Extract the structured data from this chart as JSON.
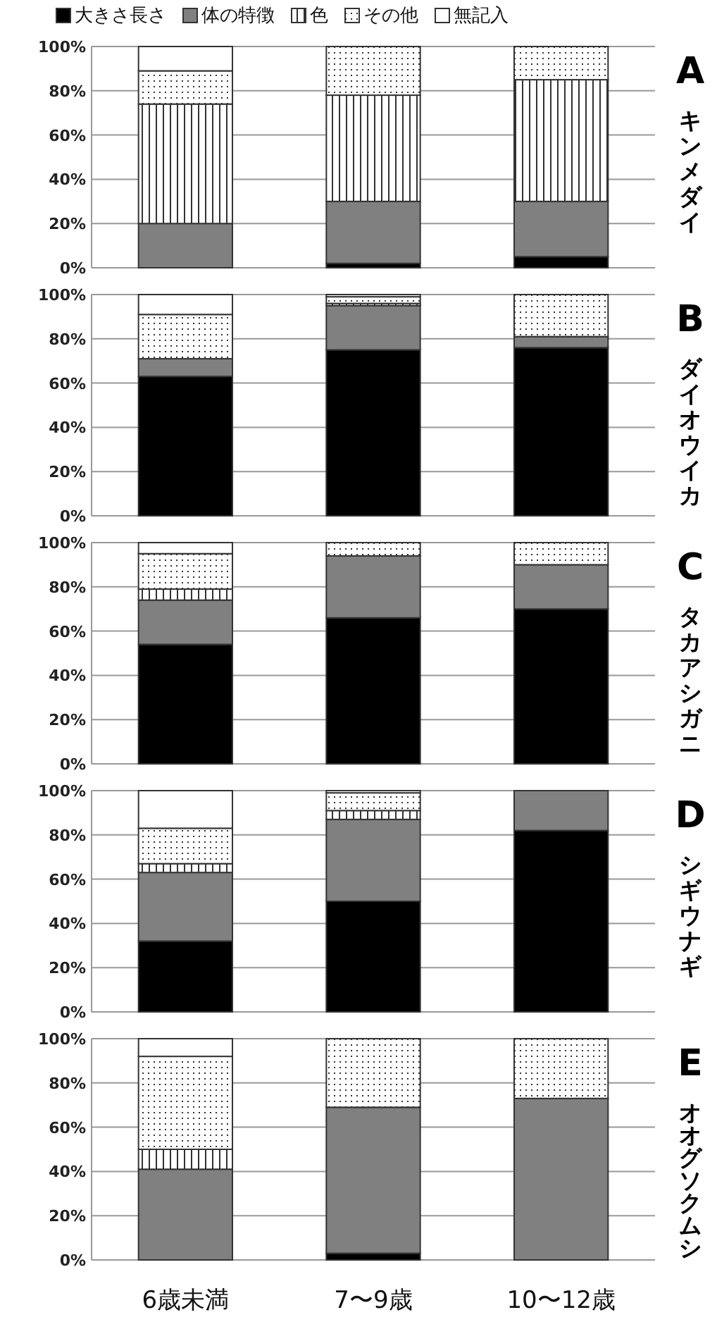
{
  "chart_data": [
    {
      "type": "bar",
      "stacked": true,
      "annotations": [
        "A",
        "キンメダイ"
      ],
      "categories": [
        null,
        null,
        null
      ],
      "ylim": [
        0,
        100
      ],
      "yticks": [
        {
          "value": 0,
          "label": "0%"
        },
        {
          "value": 20,
          "label": "20%"
        },
        {
          "value": 40,
          "label": "40%"
        },
        {
          "value": 60,
          "label": "60%"
        },
        {
          "value": 80,
          "label": "80%"
        },
        {
          "value": 100,
          "label": "100%"
        }
      ],
      "grid": "y",
      "legend": "top",
      "tick_labels": "y",
      "series": [
        {
          "name": "大きさ長さ",
          "color": "#000000",
          "values": [
            0,
            2,
            5
          ]
        },
        {
          "name": "体の特徴",
          "color": "#808080",
          "values": [
            20,
            28,
            25
          ]
        },
        {
          "name": "色",
          "color": "#333333",
          "values": [
            54,
            48,
            55
          ]
        },
        {
          "name": "その他",
          "color": "#333333",
          "values": [
            15,
            22,
            15
          ]
        },
        {
          "name": "無記入",
          "color": "#ffffff",
          "values": [
            11,
            0,
            0
          ]
        }
      ]
    },
    {
      "type": "bar",
      "stacked": true,
      "annotations": [
        "B",
        "ダイオウイカ"
      ],
      "categories": [
        null,
        null,
        null
      ],
      "ylim": [
        0,
        100
      ],
      "yticks": [
        {
          "value": 0,
          "label": "0%"
        },
        {
          "value": 20,
          "label": "20%"
        },
        {
          "value": 40,
          "label": "40%"
        },
        {
          "value": 60,
          "label": "60%"
        },
        {
          "value": 80,
          "label": "80%"
        },
        {
          "value": 100,
          "label": "100%"
        }
      ],
      "grid": "y",
      "tick_labels": "y",
      "series": [
        {
          "color": "#000000",
          "values": [
            63,
            75,
            76
          ]
        },
        {
          "color": "#808080",
          "values": [
            8,
            20,
            5
          ]
        },
        {
          "color": "#333333",
          "values": [
            0,
            1,
            0
          ]
        },
        {
          "color": "#333333",
          "values": [
            20,
            3,
            19
          ]
        },
        {
          "color": "#ffffff",
          "values": [
            9,
            1,
            0
          ]
        }
      ]
    },
    {
      "type": "bar",
      "stacked": true,
      "annotations": [
        "C",
        "タカアシガニ"
      ],
      "categories": [
        null,
        null,
        null
      ],
      "ylim": [
        0,
        100
      ],
      "yticks": [
        {
          "value": 0,
          "label": "0%"
        },
        {
          "value": 20,
          "label": "20%"
        },
        {
          "value": 40,
          "label": "40%"
        },
        {
          "value": 60,
          "label": "60%"
        },
        {
          "value": 80,
          "label": "80%"
        },
        {
          "value": 100,
          "label": "100%"
        }
      ],
      "grid": "y",
      "tick_labels": "y",
      "series": [
        {
          "color": "#000000",
          "values": [
            54,
            66,
            70
          ]
        },
        {
          "color": "#808080",
          "values": [
            20,
            28,
            20
          ]
        },
        {
          "color": "#333333",
          "values": [
            5,
            0,
            0
          ]
        },
        {
          "color": "#333333",
          "values": [
            16,
            6,
            10
          ]
        },
        {
          "color": "#ffffff",
          "values": [
            5,
            0,
            0
          ]
        }
      ]
    },
    {
      "type": "bar",
      "stacked": true,
      "annotations": [
        "D",
        "シギウナギ"
      ],
      "categories": [
        null,
        null,
        null
      ],
      "ylim": [
        0,
        100
      ],
      "yticks": [
        {
          "value": 0,
          "label": "0%"
        },
        {
          "value": 20,
          "label": "20%"
        },
        {
          "value": 40,
          "label": "40%"
        },
        {
          "value": 60,
          "label": "60%"
        },
        {
          "value": 80,
          "label": "80%"
        },
        {
          "value": 100,
          "label": "100%"
        }
      ],
      "grid": "y",
      "tick_labels": "y",
      "series": [
        {
          "color": "#000000",
          "values": [
            32,
            50,
            82
          ]
        },
        {
          "color": "#808080",
          "values": [
            31,
            37,
            18
          ]
        },
        {
          "color": "#333333",
          "values": [
            4,
            4,
            0
          ]
        },
        {
          "color": "#333333",
          "values": [
            16,
            8,
            0
          ]
        },
        {
          "color": "#ffffff",
          "values": [
            17,
            1,
            0
          ]
        }
      ]
    },
    {
      "type": "bar",
      "stacked": true,
      "annotations": [
        "E",
        "オオグソクムシ"
      ],
      "categories": [
        "6歳未満",
        "7〜9歳",
        "10〜12歳"
      ],
      "ylim": [
        0,
        100
      ],
      "yticks": [
        {
          "value": 0,
          "label": "0%"
        },
        {
          "value": 20,
          "label": "20%"
        },
        {
          "value": 40,
          "label": "40%"
        },
        {
          "value": 60,
          "label": "60%"
        },
        {
          "value": 80,
          "label": "80%"
        },
        {
          "value": 100,
          "label": "100%"
        }
      ],
      "grid": "y",
      "series": [
        {
          "color": "#000000",
          "values": [
            0,
            3,
            0
          ]
        },
        {
          "color": "#808080",
          "values": [
            41,
            66,
            73
          ]
        },
        {
          "color": "#333333",
          "values": [
            9,
            0,
            0
          ]
        },
        {
          "color": "#333333",
          "values": [
            42,
            31,
            27
          ]
        },
        {
          "color": "#ffffff",
          "values": [
            8,
            0,
            0
          ]
        }
      ]
    }
  ]
}
